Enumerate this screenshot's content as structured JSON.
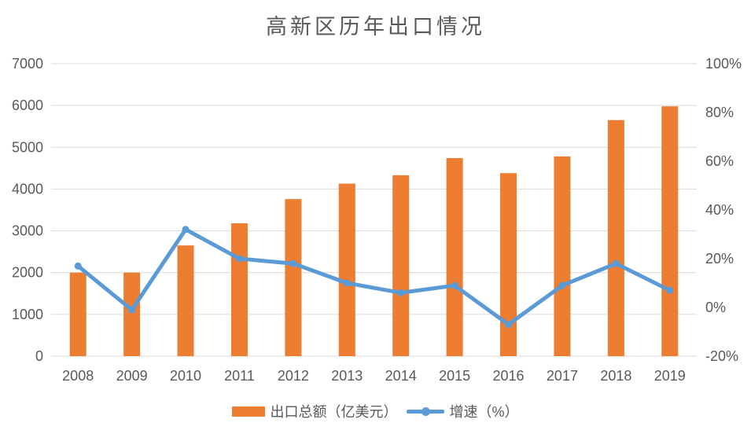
{
  "chart_data": {
    "type": "combo-bar-line",
    "title": "高新区历年出口情况",
    "categories": [
      "2008",
      "2009",
      "2010",
      "2011",
      "2012",
      "2013",
      "2014",
      "2015",
      "2016",
      "2017",
      "2018",
      "2019"
    ],
    "series": [
      {
        "name": "出口总额（亿美元）",
        "type": "bar",
        "axis": "left",
        "color": "#ED7D31",
        "values": [
          2000,
          2000,
          2650,
          3180,
          3760,
          4130,
          4330,
          4740,
          4380,
          4780,
          5650,
          5980
        ]
      },
      {
        "name": "增速（%）",
        "type": "line",
        "axis": "right",
        "color": "#5B9BD5",
        "values": [
          17,
          -1,
          32,
          20,
          18,
          10,
          6,
          9,
          -7,
          9,
          18,
          7
        ]
      }
    ],
    "axis_left": {
      "min": 0,
      "max": 7000,
      "step": 1000,
      "ticks": [
        "0",
        "1000",
        "2000",
        "3000",
        "4000",
        "5000",
        "6000",
        "7000"
      ]
    },
    "axis_right": {
      "min": -20,
      "max": 100,
      "step": 20,
      "ticks": [
        "-20%",
        "0%",
        "20%",
        "40%",
        "60%",
        "80%",
        "100%"
      ]
    },
    "grid": true,
    "legend_position": "bottom",
    "background": "#FFFFFF",
    "text_color": "#595959",
    "grid_color": "#D9D9D9"
  }
}
